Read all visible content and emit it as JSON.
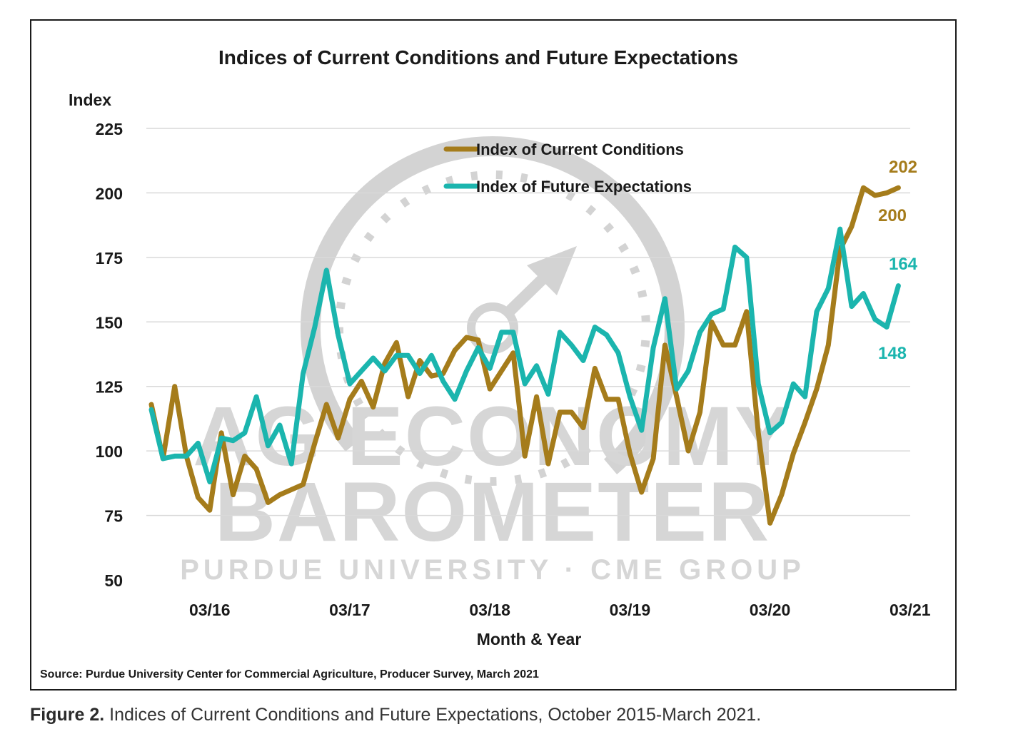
{
  "figure_caption": {
    "label": "Figure 2.",
    "text": " Indices of Current Conditions and Future Expectations, October 2015-March 2021."
  },
  "watermark": {
    "line1": "AG ECONOMY",
    "line2": "BAROMETER",
    "line3": "PURDUE UNIVERSITY  ·  CME GROUP"
  },
  "colors": {
    "current": "#A57C1B",
    "future": "#1BB5AE",
    "grid": "#d9d9d9",
    "watermark": "#d0d0d0"
  },
  "chart_data": {
    "type": "line",
    "title": "Indices of Current Conditions and Future Expectations",
    "ylabel": "Index",
    "xlabel": "Month & Year",
    "source": "Source: Purdue University Center for Commercial Agriculture, Producer Survey, March 2021",
    "ylim": [
      50,
      225
    ],
    "yticks": [
      50,
      75,
      100,
      125,
      150,
      175,
      200,
      225
    ],
    "grid": true,
    "legend_position": "top-center",
    "x_start": "10/15",
    "x_end": "03/21",
    "x_ticks": [
      {
        "label": "03/16",
        "index": 5
      },
      {
        "label": "03/17",
        "index": 17
      },
      {
        "label": "03/18",
        "index": 29
      },
      {
        "label": "03/19",
        "index": 41
      },
      {
        "label": "03/20",
        "index": 53
      },
      {
        "label": "03/21",
        "index": 65
      }
    ],
    "series": [
      {
        "name": "Index of Current Conditions",
        "color": "#A57C1B",
        "values": [
          118,
          97,
          125,
          98,
          82,
          77,
          107,
          83,
          98,
          93,
          80,
          83,
          85,
          87,
          103,
          118,
          105,
          120,
          127,
          117,
          134,
          142,
          121,
          135,
          129,
          130,
          139,
          144,
          143,
          124,
          131,
          138,
          98,
          121,
          95,
          115,
          115,
          109,
          132,
          120,
          120,
          99,
          84,
          97,
          141,
          121,
          100,
          115,
          150,
          141,
          141,
          154,
          107,
          72,
          83,
          99,
          111,
          124,
          141,
          178,
          187,
          202,
          199,
          200,
          202
        ]
      },
      {
        "name": "Index of Future Expectations",
        "color": "#1BB5AE",
        "values": [
          116,
          97,
          98,
          98,
          103,
          88,
          105,
          104,
          107,
          121,
          102,
          110,
          95,
          130,
          148,
          170,
          145,
          126,
          131,
          136,
          131,
          137,
          137,
          130,
          137,
          127,
          120,
          131,
          140,
          132,
          146,
          146,
          126,
          133,
          122,
          146,
          141,
          135,
          148,
          145,
          138,
          121,
          108,
          140,
          159,
          124,
          131,
          146,
          153,
          155,
          179,
          175,
          126,
          107,
          111,
          126,
          121,
          154,
          163,
          186,
          156,
          161,
          151,
          148,
          164
        ]
      }
    ],
    "annotations": [
      {
        "text": "202",
        "series": "Index of Current Conditions",
        "value": 202
      },
      {
        "text": "200",
        "series": "Index of Current Conditions",
        "value": 200
      },
      {
        "text": "164",
        "series": "Index of Future Expectations",
        "value": 164
      },
      {
        "text": "148",
        "series": "Index of Future Expectations",
        "value": 148
      }
    ]
  }
}
